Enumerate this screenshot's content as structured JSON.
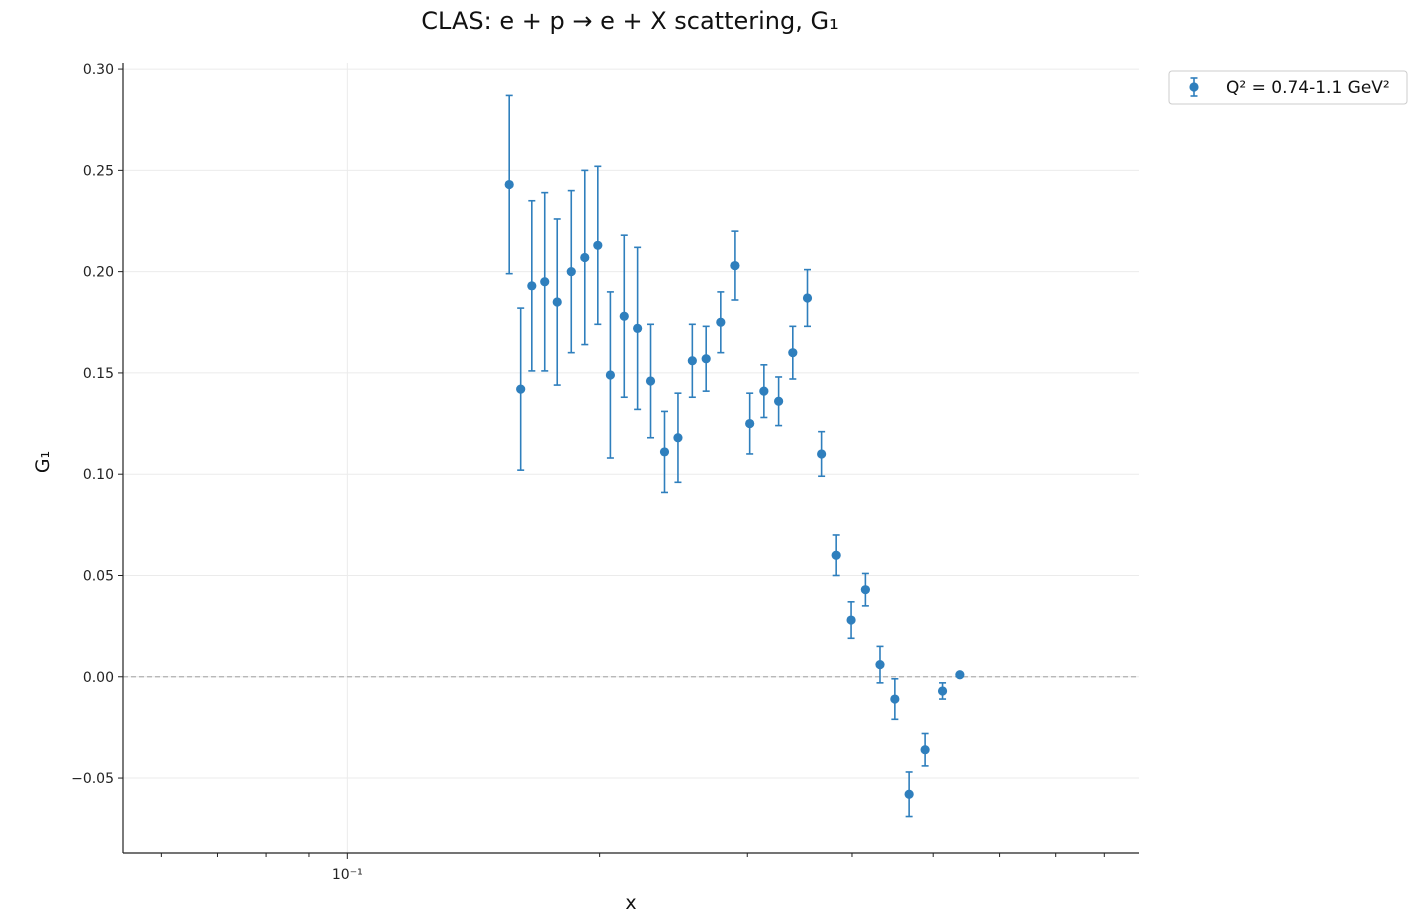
{
  "chart_data": {
    "type": "scatter",
    "title": "CLAS: e + p → e + X scattering, G₁",
    "xlabel": "x",
    "ylabel": "G₁",
    "xscale": "log",
    "xlim": [
      0.054,
      0.88
    ],
    "ylim": [
      -0.087,
      0.303
    ],
    "y_ticks": [
      -0.05,
      0.0,
      0.05,
      0.1,
      0.15,
      0.2,
      0.25,
      0.3
    ],
    "y_tick_labels": [
      "−0.05",
      "0.00",
      "0.05",
      "0.10",
      "0.15",
      "0.20",
      "0.25",
      "0.30"
    ],
    "x_major_ticks": [
      0.1
    ],
    "x_major_tick_labels": [
      "10⁻¹"
    ],
    "x_minor_ticks": [
      0.06,
      0.07,
      0.08,
      0.09,
      0.2,
      0.3,
      0.4,
      0.5,
      0.6,
      0.7,
      0.8
    ],
    "grid": true,
    "reference_line": {
      "y": 0.0,
      "style": "dashed",
      "color": "#b0b0b0"
    },
    "legend": {
      "placement": "outside-top-right",
      "entries": [
        "Q² = 0.74-1.1 GeV²"
      ]
    },
    "colors": {
      "series": "#2f7fbd"
    },
    "series": [
      {
        "name": "Q² = 0.74-1.1 GeV²",
        "points": [
          {
            "x": 0.156,
            "y": 0.243,
            "err": 0.044
          },
          {
            "x": 0.161,
            "y": 0.142,
            "err": 0.04
          },
          {
            "x": 0.166,
            "y": 0.193,
            "err": 0.042
          },
          {
            "x": 0.172,
            "y": 0.195,
            "err": 0.044
          },
          {
            "x": 0.178,
            "y": 0.185,
            "err": 0.041
          },
          {
            "x": 0.185,
            "y": 0.2,
            "err": 0.04
          },
          {
            "x": 0.192,
            "y": 0.207,
            "err": 0.043
          },
          {
            "x": 0.199,
            "y": 0.213,
            "err": 0.039
          },
          {
            "x": 0.206,
            "y": 0.149,
            "err": 0.041
          },
          {
            "x": 0.214,
            "y": 0.178,
            "err": 0.04
          },
          {
            "x": 0.222,
            "y": 0.172,
            "err": 0.04
          },
          {
            "x": 0.23,
            "y": 0.146,
            "err": 0.028
          },
          {
            "x": 0.239,
            "y": 0.111,
            "err": 0.02
          },
          {
            "x": 0.248,
            "y": 0.118,
            "err": 0.022
          },
          {
            "x": 0.258,
            "y": 0.156,
            "err": 0.018
          },
          {
            "x": 0.268,
            "y": 0.157,
            "err": 0.016
          },
          {
            "x": 0.279,
            "y": 0.175,
            "err": 0.015
          },
          {
            "x": 0.29,
            "y": 0.203,
            "err": 0.017
          },
          {
            "x": 0.302,
            "y": 0.125,
            "err": 0.015
          },
          {
            "x": 0.314,
            "y": 0.141,
            "err": 0.013
          },
          {
            "x": 0.327,
            "y": 0.136,
            "err": 0.012
          },
          {
            "x": 0.34,
            "y": 0.16,
            "err": 0.013
          },
          {
            "x": 0.354,
            "y": 0.187,
            "err": 0.014
          },
          {
            "x": 0.368,
            "y": 0.11,
            "err": 0.011
          },
          {
            "x": 0.383,
            "y": 0.06,
            "err": 0.01
          },
          {
            "x": 0.399,
            "y": 0.028,
            "err": 0.009
          },
          {
            "x": 0.415,
            "y": 0.043,
            "err": 0.008
          },
          {
            "x": 0.432,
            "y": 0.006,
            "err": 0.009
          },
          {
            "x": 0.45,
            "y": -0.011,
            "err": 0.01
          },
          {
            "x": 0.468,
            "y": -0.058,
            "err": 0.011
          },
          {
            "x": 0.489,
            "y": -0.036,
            "err": 0.008
          },
          {
            "x": 0.513,
            "y": -0.007,
            "err": 0.004
          },
          {
            "x": 0.538,
            "y": 0.001,
            "err": 0.0
          }
        ]
      }
    ]
  }
}
